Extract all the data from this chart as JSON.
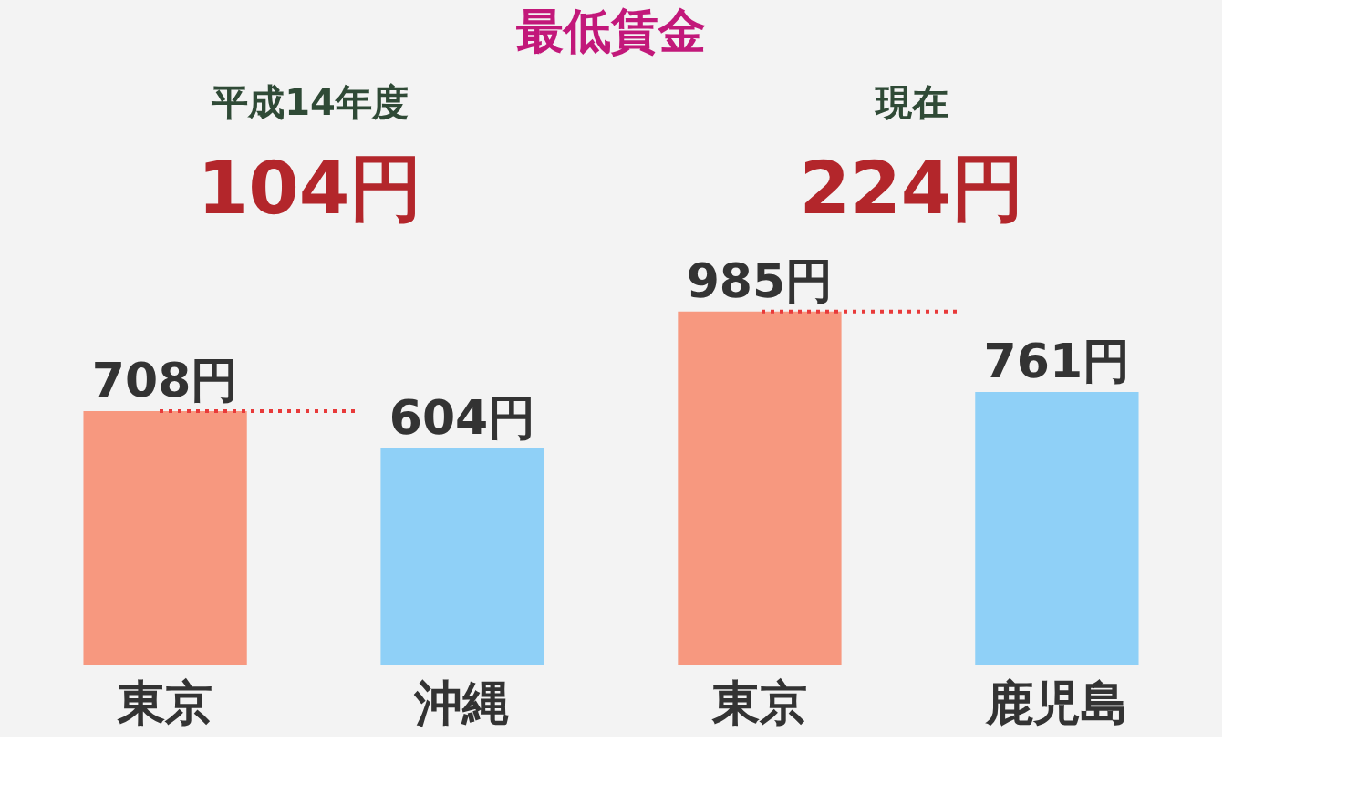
{
  "chart_data": {
    "type": "bar",
    "title": "最低賃金",
    "categories": [
      "東京",
      "沖縄",
      "東京",
      "鹿児島"
    ],
    "values": [
      708,
      604,
      985,
      761
    ],
    "colors": [
      "#f7987f",
      "#8fd0f7",
      "#f7987f",
      "#8fd0f7"
    ],
    "value_labels": [
      "708円",
      "604円",
      "985円",
      "761円"
    ],
    "annotations": [
      "平成14年度",
      "現在",
      "104円",
      "224円"
    ],
    "ref_lines": [
      {
        "axis": "y",
        "value": 708,
        "color": "#e83a3a",
        "line_style": "dotted"
      },
      {
        "axis": "y",
        "value": 985,
        "color": "#e83a3a",
        "line_style": "dotted"
      }
    ],
    "grid": false
  }
}
